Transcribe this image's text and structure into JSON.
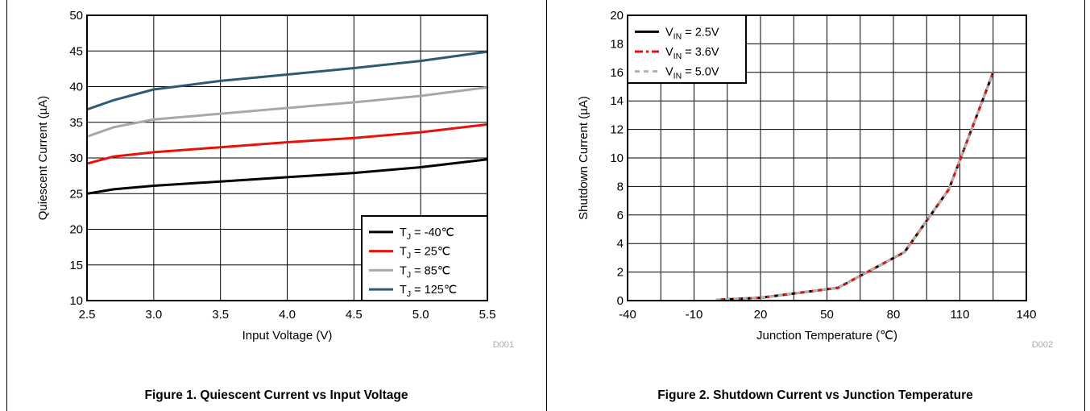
{
  "chart_data": [
    {
      "type": "line",
      "title": "Figure 1. Quiescent Current vs Input Voltage",
      "xlabel": "Input Voltage (V)",
      "ylabel": "Quiescent Current (µA)",
      "code": "D001",
      "xlim": [
        2.5,
        5.5
      ],
      "ylim": [
        10,
        50
      ],
      "xticks": [
        2.5,
        3.0,
        3.5,
        4.0,
        4.5,
        5.0,
        5.5
      ],
      "xtick_labels": [
        "2.5",
        "3.0",
        "3.5",
        "4.0",
        "4.5",
        "5.0",
        "5.5"
      ],
      "yticks": [
        10,
        15,
        20,
        25,
        30,
        35,
        40,
        45,
        50
      ],
      "ytick_labels": [
        "10",
        "15",
        "20",
        "25",
        "30",
        "35",
        "40",
        "45",
        "50"
      ],
      "grid": true,
      "legend_position": "bottom-right",
      "series": [
        {
          "label_main": "T",
          "label_sub": "J",
          "label_rest": " = -40℃",
          "color": "#000000",
          "x": [
            2.5,
            2.7,
            3.0,
            3.5,
            4.0,
            4.5,
            5.0,
            5.5
          ],
          "y": [
            25.0,
            25.6,
            26.1,
            26.7,
            27.3,
            27.9,
            28.7,
            29.8
          ]
        },
        {
          "label_main": "T",
          "label_sub": "J",
          "label_rest": " =  25℃",
          "color": "#e8120c",
          "x": [
            2.5,
            2.7,
            3.0,
            3.5,
            4.0,
            4.5,
            5.0,
            5.5
          ],
          "y": [
            29.2,
            30.2,
            30.8,
            31.5,
            32.2,
            32.8,
            33.6,
            34.7
          ]
        },
        {
          "label_main": "T",
          "label_sub": "J",
          "label_rest": " =  85℃",
          "color": "#a8a8a8",
          "x": [
            2.5,
            2.7,
            3.0,
            3.5,
            4.0,
            4.5,
            5.0,
            5.5
          ],
          "y": [
            33.0,
            34.3,
            35.4,
            36.2,
            37.0,
            37.8,
            38.7,
            39.9
          ]
        },
        {
          "label_main": "T",
          "label_sub": "J",
          "label_rest": " =  125℃",
          "color": "#2e5a73",
          "x": [
            2.5,
            2.7,
            3.0,
            3.25,
            3.5,
            4.0,
            4.5,
            5.0,
            5.5
          ],
          "y": [
            36.8,
            38.1,
            39.6,
            40.2,
            40.8,
            41.7,
            42.6,
            43.6,
            44.9
          ]
        }
      ]
    },
    {
      "type": "line",
      "title": "Figure 2. Shutdown Current vs Junction Temperature",
      "xlabel": "Junction Temperature (℃)",
      "ylabel": "Shutdown Current (µA)",
      "code": "D002",
      "xlim": [
        -40,
        140
      ],
      "ylim": [
        0,
        20
      ],
      "xticks": [
        -40,
        -10,
        20,
        50,
        80,
        110,
        140
      ],
      "xtick_labels": [
        "-40",
        "-10",
        "20",
        "50",
        "80",
        "110",
        "140"
      ],
      "xgrid": [
        -40,
        -25,
        -10,
        5,
        20,
        35,
        50,
        65,
        80,
        95,
        110,
        125,
        140
      ],
      "yticks": [
        0,
        2,
        4,
        6,
        8,
        10,
        12,
        14,
        16,
        18,
        20
      ],
      "ytick_labels": [
        "0",
        "2",
        "4",
        "6",
        "8",
        "10",
        "12",
        "14",
        "16",
        "18",
        "20"
      ],
      "grid": true,
      "legend_position": "top-left",
      "series": [
        {
          "label_main": "V",
          "label_sub": "IN",
          "label_rest": " = 2.5V",
          "color": "#000000",
          "dash": "",
          "x": [
            0,
            20,
            55,
            85,
            105,
            125
          ],
          "y": [
            0.05,
            0.2,
            0.9,
            3.4,
            7.8,
            16.0
          ]
        },
        {
          "label_main": "V",
          "label_sub": "IN",
          "label_rest": " = 3.6V",
          "color": "#e8120c",
          "dash": "10,4,3,4",
          "x": [
            0,
            20,
            55,
            85,
            105,
            125
          ],
          "y": [
            0.05,
            0.2,
            0.9,
            3.4,
            7.8,
            16.0
          ]
        },
        {
          "label_main": "V",
          "label_sub": "IN",
          "label_rest": " = 5.0V",
          "color": "#b0b0b0",
          "dash": "6,5",
          "x": [
            0,
            20,
            55,
            85,
            105,
            125
          ],
          "y": [
            0.05,
            0.2,
            0.9,
            3.4,
            7.8,
            16.0
          ]
        }
      ]
    }
  ]
}
